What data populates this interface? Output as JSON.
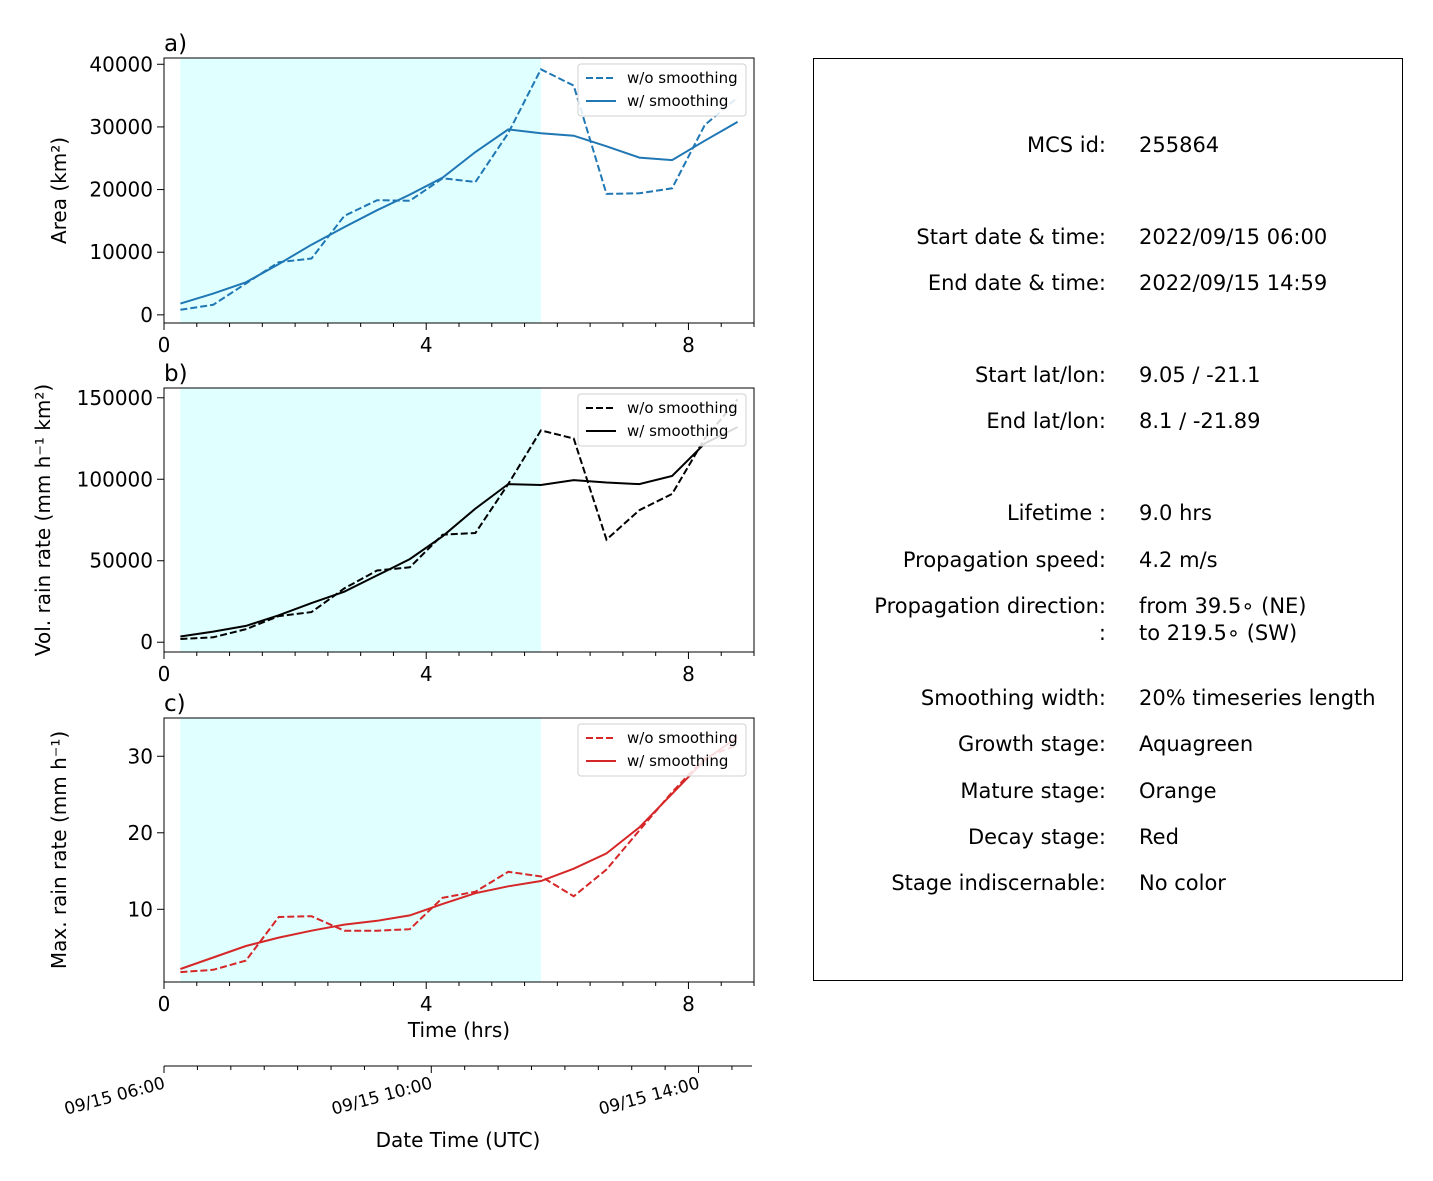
{
  "panels": [
    {
      "panel_label": "a)",
      "ylabel": "Area  (km²)",
      "color": "#1f77b4",
      "legend": [
        "w/o smoothing",
        "w/ smoothing"
      ],
      "yticks": [
        0,
        10000,
        20000,
        30000,
        40000
      ],
      "ytick_labels": [
        "0",
        "10000",
        "20000",
        "30000",
        "40000"
      ],
      "ylim": [
        -1300,
        41000
      ]
    },
    {
      "panel_label": "b)",
      "ylabel": "Vol. rain rate (mm h⁻¹ km²)",
      "color": "#000000",
      "legend": [
        "w/o smoothing",
        "w/ smoothing"
      ],
      "yticks": [
        0,
        50000,
        100000,
        150000
      ],
      "ytick_labels": [
        "0",
        "50000",
        "100000",
        "150000"
      ],
      "ylim": [
        -6000,
        156000
      ]
    },
    {
      "panel_label": "c)",
      "ylabel": "Max. rain rate  (mm h⁻¹)",
      "color": "#d62728",
      "legend": [
        "w/o smoothing",
        "w/ smoothing"
      ],
      "yticks": [
        10,
        20,
        30
      ],
      "ytick_labels": [
        "10",
        "20",
        "30"
      ],
      "ylim": [
        0.5,
        35
      ]
    }
  ],
  "x_axis": {
    "xlabel": "Time (hrs)",
    "xticks": [
      0,
      4,
      8
    ],
    "xtick_labels": [
      "0",
      "4",
      "8"
    ],
    "xlim": [
      0,
      9
    ],
    "minor_step": 0.5
  },
  "datetime_axis": {
    "label": "Date Time (UTC)",
    "tick_labels": [
      "09/15 06:00",
      "09/15 10:00",
      "09/15 14:00"
    ]
  },
  "shading": {
    "x_start": 0.25,
    "x_end": 5.75,
    "color": "#e0ffff"
  },
  "chart_data": [
    {
      "type": "line",
      "x": [
        0.25,
        0.75,
        1.25,
        1.75,
        2.25,
        2.75,
        3.25,
        3.75,
        4.25,
        4.75,
        5.25,
        5.75,
        6.25,
        6.75,
        7.25,
        7.75,
        8.25,
        8.75
      ],
      "series": [
        {
          "name": "w/o smoothing",
          "values": [
            800,
            1600,
            5000,
            8400,
            9000,
            15800,
            18300,
            18200,
            21800,
            21200,
            29000,
            39200,
            36600,
            19300,
            19400,
            20200,
            30300,
            34700
          ]
        },
        {
          "name": "w/ smoothing",
          "values": [
            1800,
            3400,
            5200,
            8100,
            11200,
            14000,
            16700,
            19200,
            21900,
            26000,
            29600,
            29000,
            28600,
            26900,
            25100,
            24700,
            27800,
            30800
          ]
        }
      ]
    },
    {
      "type": "line",
      "x": [
        0.25,
        0.75,
        1.25,
        1.75,
        2.25,
        2.75,
        3.25,
        3.75,
        4.25,
        4.75,
        5.25,
        5.75,
        6.25,
        6.75,
        7.25,
        7.75,
        8.25,
        8.75
      ],
      "series": [
        {
          "name": "w/o smoothing",
          "values": [
            2000,
            3000,
            8000,
            16000,
            18500,
            33000,
            44000,
            46000,
            66000,
            67000,
            97000,
            130000,
            125000,
            63000,
            81000,
            91000,
            125000,
            149000
          ]
        },
        {
          "name": "w/ smoothing",
          "values": [
            3500,
            6500,
            10000,
            16500,
            24000,
            31000,
            41000,
            51000,
            65000,
            82000,
            97000,
            96500,
            99500,
            98000,
            97000,
            102000,
            122000,
            132000
          ]
        }
      ]
    },
    {
      "type": "line",
      "x": [
        0.25,
        0.75,
        1.25,
        1.75,
        2.25,
        2.75,
        3.25,
        3.75,
        4.25,
        4.75,
        5.25,
        5.75,
        6.25,
        6.75,
        7.25,
        7.75,
        8.25,
        8.75
      ],
      "series": [
        {
          "name": "w/o smoothing",
          "values": [
            1.8,
            2.1,
            3.3,
            9.0,
            9.1,
            7.2,
            7.2,
            7.4,
            11.5,
            12.3,
            14.9,
            14.3,
            11.7,
            15.2,
            20.3,
            25.3,
            29.8,
            31.5
          ]
        },
        {
          "name": "w/ smoothing",
          "values": [
            2.2,
            3.7,
            5.2,
            6.3,
            7.2,
            8.0,
            8.5,
            9.2,
            10.7,
            12.1,
            13.0,
            13.7,
            15.3,
            17.3,
            20.7,
            25.1,
            29.5,
            32.5
          ]
        }
      ]
    }
  ],
  "info": {
    "rows": [
      {
        "label": "MCS id:",
        "value": "255864"
      },
      {
        "label": "Start date & time:",
        "value": "2022/09/15 06:00"
      },
      {
        "label": "End date & time:",
        "value": "2022/09/15 14:59"
      },
      {
        "label": "Start lat/lon:",
        "value": "9.05 / -21.1"
      },
      {
        "label": "End lat/lon:",
        "value": "8.1 / -21.89"
      },
      {
        "label": "Lifetime :",
        "value": "9.0 hrs"
      },
      {
        "label": "Propagation speed:",
        "value": "4.2 m/s"
      },
      {
        "label": "Propagation direction:",
        "value": "from  39.5∘ (NE)"
      },
      {
        "label": ":",
        "value": "to   219.5∘ (SW)"
      },
      {
        "label": "Smoothing width:",
        "value": "20% timeseries length"
      },
      {
        "label": "Growth stage:",
        "value": "Aquagreen"
      },
      {
        "label": "Mature stage:",
        "value": "Orange"
      },
      {
        "label": "Decay stage:",
        "value": "Red"
      },
      {
        "label": "Stage indiscernable:",
        "value": "No color"
      }
    ]
  }
}
